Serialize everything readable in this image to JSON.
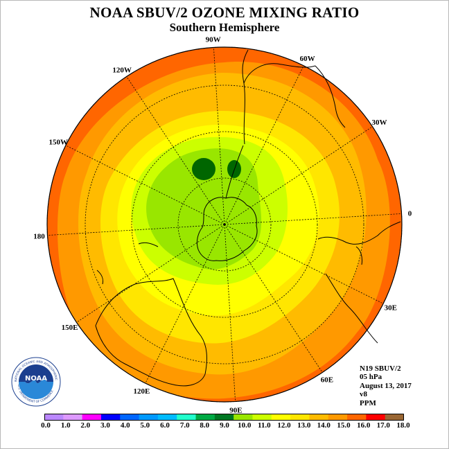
{
  "title": "NOAA SBUV/2 OZONE MIXING RATIO",
  "subtitle": "Southern Hemisphere",
  "map": {
    "projection": "polar-stereographic",
    "center": "South Pole",
    "longitude_labels": [
      "0",
      "30W",
      "60W",
      "90W",
      "120W",
      "150W",
      "180",
      "150E",
      "120E",
      "90E",
      "60E",
      "30E"
    ],
    "colors": {
      "ocean_edge": "#ff6600",
      "outer_ring": "#ff9900",
      "mid_ring": "#ffbb00",
      "inner_ring": "#ffe600",
      "yellow": "#ffff00",
      "light_green": "#ccff00",
      "green": "#99e600",
      "dark_green": "#006600"
    }
  },
  "info": {
    "satellite": "N19 SBUV/2",
    "level": "05 hPa",
    "date": "August 13, 2017",
    "version": "v8",
    "units": "PPM"
  },
  "logo": {
    "text": "NOAA",
    "ring_text": "NATIONAL OCEANIC AND ATMOSPHERIC ADMINISTRATION",
    "ring_text_bottom": "U.S. DEPARTMENT OF COMMERCE"
  },
  "colorbar": {
    "ticks": [
      "0.0",
      "1.0",
      "2.0",
      "3.0",
      "4.0",
      "5.0",
      "6.0",
      "7.0",
      "8.0",
      "9.0",
      "10.0",
      "11.0",
      "12.0",
      "13.0",
      "14.0",
      "15.0",
      "16.0",
      "17.0",
      "18.0"
    ],
    "colors": [
      "#bb88ff",
      "#dd99ff",
      "#ff00ff",
      "#0000ff",
      "#0066ff",
      "#0099ff",
      "#00bbff",
      "#22ffcc",
      "#00aa44",
      "#007722",
      "#99e600",
      "#ccff00",
      "#ffff00",
      "#ffe600",
      "#ffbb00",
      "#ff9900",
      "#ff6600",
      "#ff0000",
      "#996633"
    ]
  }
}
